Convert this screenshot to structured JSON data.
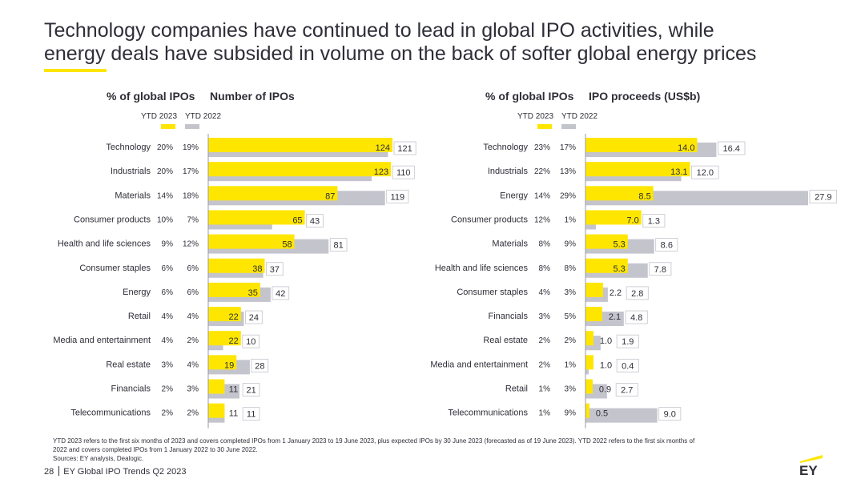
{
  "title": {
    "line1": "Technology companies have continued to lead in global IPO activities, while",
    "line2": "energy deals have subsided in volume on the back of softer global energy prices"
  },
  "colors": {
    "ytd2023": "#ffe600",
    "ytd2022": "#c4c4cd",
    "text": "#2e2e38"
  },
  "legend": {
    "ytd2023": "YTD 2023",
    "ytd2022": "YTD 2022"
  },
  "chart_data": [
    {
      "type": "bar",
      "orientation": "horizontal",
      "pct_header": "% of global IPOs",
      "title": "Number of IPOs",
      "categories": [
        "Technology",
        "Industrials",
        "Materials",
        "Consumer products",
        "Health and life sciences",
        "Consumer staples",
        "Energy",
        "Retail",
        "Media and entertainment",
        "Real estate",
        "Financials",
        "Telecommunications"
      ],
      "pct_2023": [
        "20%",
        "20%",
        "14%",
        "10%",
        "9%",
        "6%",
        "6%",
        "4%",
        "4%",
        "3%",
        "2%",
        "2%"
      ],
      "pct_2022": [
        "19%",
        "17%",
        "18%",
        "7%",
        "12%",
        "6%",
        "6%",
        "4%",
        "2%",
        "4%",
        "3%",
        "2%"
      ],
      "series": [
        {
          "name": "YTD 2023",
          "values": [
            124,
            123,
            87,
            65,
            58,
            38,
            35,
            22,
            22,
            19,
            11,
            11
          ]
        },
        {
          "name": "YTD 2022",
          "values": [
            121,
            110,
            119,
            43,
            81,
            37,
            42,
            24,
            10,
            28,
            21,
            11
          ]
        }
      ],
      "xlim": [
        0,
        124
      ]
    },
    {
      "type": "bar",
      "orientation": "horizontal",
      "pct_header": "% of global IPOs",
      "title": "IPO proceeds (US$b)",
      "categories": [
        "Technology",
        "Industrials",
        "Energy",
        "Consumer products",
        "Materials",
        "Health and life sciences",
        "Consumer staples",
        "Financials",
        "Real estate",
        "Media and entertainment",
        "Retail",
        "Telecommunications"
      ],
      "pct_2023": [
        "23%",
        "22%",
        "14%",
        "12%",
        "8%",
        "8%",
        "4%",
        "3%",
        "2%",
        "2%",
        "1%",
        "1%"
      ],
      "pct_2022": [
        "17%",
        "13%",
        "29%",
        "1%",
        "9%",
        "8%",
        "3%",
        "5%",
        "2%",
        "1%",
        "3%",
        "9%"
      ],
      "series": [
        {
          "name": "YTD 2023",
          "values": [
            14.0,
            13.1,
            8.5,
            7.0,
            5.3,
            5.3,
            2.2,
            2.1,
            1.0,
            1.0,
            0.9,
            0.5
          ]
        },
        {
          "name": "YTD 2022",
          "values": [
            16.4,
            12.0,
            27.9,
            1.3,
            8.6,
            7.8,
            2.8,
            4.8,
            1.9,
            0.4,
            2.7,
            9.0
          ]
        }
      ],
      "xlim": [
        0,
        27.9
      ]
    }
  ],
  "footnote": {
    "line1": "YTD 2023 refers to the first six months of 2023 and covers completed IPOs from 1 January 2023 to 19 June 2023, plus expected IPOs by 30 June 2023 (forecasted as of 19 June 2023). YTD 2022 refers to the first six months of",
    "line2": "2022 and covers completed IPOs from 1 January 2022 to 30 June 2022.",
    "line3": "Sources: EY analysis, Dealogic."
  },
  "footer": {
    "page": "28",
    "text": "EY Global IPO Trends Q2 2023"
  },
  "logo": {
    "text": "EY",
    "icon": "ey-logo-icon"
  }
}
